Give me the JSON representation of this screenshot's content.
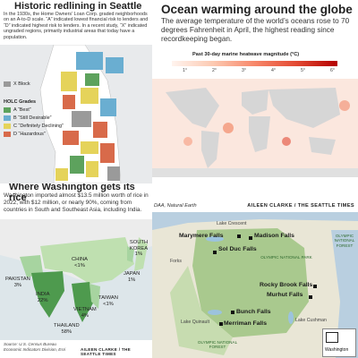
{
  "redlining": {
    "title": "Historic redlining in Seattle",
    "intro": "In the 1930s, the Home Owners’ Loan Corp. graded neighborhoods on an A-to-D scale. “A” indicated lowest financial risk to lenders and “D” indicated highest risk to lenders. In a recent study, “X” indicated ungraded regions, primarily industrial areas that today have a population.",
    "xblock": "X Block",
    "legend_title": "HOLC Grades",
    "grades": [
      {
        "label": "A “Best”",
        "color": "#5da25d"
      },
      {
        "label": "B “Still Desirable”",
        "color": "#6aaed1"
      },
      {
        "label": "C “Definitely Declining”",
        "color": "#e5d35a"
      },
      {
        "label": "D “Hazardous”",
        "color": "#d86a4a"
      }
    ],
    "xcolor": "#9a9a9a"
  },
  "ocean": {
    "title": "Ocean warming around the globe",
    "subtitle": "The average temperature of the world’s oceans rose to 70 degrees Fahrenheit in April, the highest reading since recordkeeping began.",
    "scale_title": "Past 30-day marine heatwave magnitude (°C)",
    "ticks": [
      "1°",
      "2°",
      "3°",
      "4°",
      "5°",
      "6°"
    ]
  },
  "rice": {
    "title": "Where Washington gets its rice",
    "subtitle": "Washington imported almost $13.5 million worth of rice in 2022, with $12 million, or nearly 90%, coming from countries in South and Southeast Asia, including India.",
    "countries": [
      {
        "name": "PAKISTAN",
        "pct": "3%"
      },
      {
        "name": "CHINA",
        "pct": "<1%"
      },
      {
        "name": "SOUTH KOREA",
        "pct": "1%"
      },
      {
        "name": "JAPAN",
        "pct": "1%"
      },
      {
        "name": "INDIA",
        "pct": "22%"
      },
      {
        "name": "TAIWAN",
        "pct": "<1%"
      },
      {
        "name": "VIETNAM",
        "pct": "4%"
      },
      {
        "name": "THAILAND",
        "pct": "58%"
      }
    ],
    "source": "Source: U.S. Census Bureau Economic Indicators Division, Esri",
    "credit": "AILEEN CLARKE / THE SEATTLE TIMES"
  },
  "olympic": {
    "credit_left": "DAA, Natural Earth",
    "credit_right": "AILEEN CLARKE / THE SEATTLE TIMES",
    "falls": [
      "Marymere Falls",
      "Madison Falls",
      "Sol Duc Falls",
      "Rocky Brook Falls",
      "Murhut Falls",
      "Bunch Falls",
      "Merriman Falls"
    ],
    "park_label": "OLYMPIC NATIONAL PARK",
    "forest_label": "OLYMPIC NATIONAL FOREST",
    "places": [
      "Lake Crescent",
      "Forks",
      "Lake Quinault",
      "Lake Cushman",
      "Washington"
    ]
  }
}
